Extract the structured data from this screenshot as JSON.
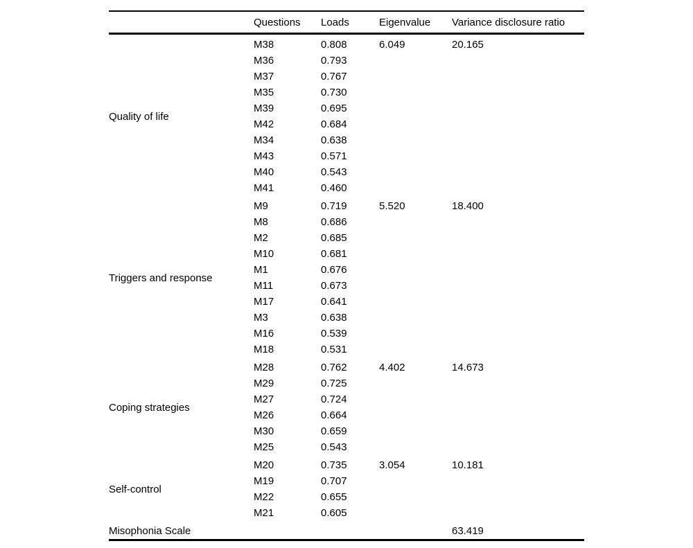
{
  "table": {
    "headers": {
      "factor": "",
      "questions": "Questions",
      "loads": "Loads",
      "eigenvalue": "Eigenvalue",
      "variance": "Variance disclosure ratio"
    },
    "groups": [
      {
        "factor": "Quality of life",
        "eigenvalue": "6.049",
        "variance": "20.165",
        "items": [
          {
            "q": "M38",
            "load": "0.808"
          },
          {
            "q": "M36",
            "load": "0.793"
          },
          {
            "q": "M37",
            "load": "0.767"
          },
          {
            "q": "M35",
            "load": "0.730"
          },
          {
            "q": "M39",
            "load": "0.695"
          },
          {
            "q": "M42",
            "load": "0.684"
          },
          {
            "q": "M34",
            "load": "0.638"
          },
          {
            "q": "M43",
            "load": "0.571"
          },
          {
            "q": "M40",
            "load": "0.543"
          },
          {
            "q": "M41",
            "load": "0.460"
          }
        ]
      },
      {
        "factor": "Triggers and response",
        "eigenvalue": "5.520",
        "variance": "18.400",
        "items": [
          {
            "q": "M9",
            "load": "0.719"
          },
          {
            "q": "M8",
            "load": "0.686"
          },
          {
            "q": "M2",
            "load": "0.685"
          },
          {
            "q": "M10",
            "load": "0.681"
          },
          {
            "q": "M1",
            "load": "0.676"
          },
          {
            "q": "M11",
            "load": "0.673"
          },
          {
            "q": "M17",
            "load": "0.641"
          },
          {
            "q": "M3",
            "load": "0.638"
          },
          {
            "q": "M16",
            "load": "0.539"
          },
          {
            "q": "M18",
            "load": "0.531"
          }
        ]
      },
      {
        "factor": "Coping strategies",
        "eigenvalue": "4.402",
        "variance": "14.673",
        "items": [
          {
            "q": "M28",
            "load": "0.762"
          },
          {
            "q": "M29",
            "load": "0.725"
          },
          {
            "q": "M27",
            "load": "0.724"
          },
          {
            "q": "M26",
            "load": "0.664"
          },
          {
            "q": "M30",
            "load": "0.659"
          },
          {
            "q": "M25",
            "load": "0.543"
          }
        ]
      },
      {
        "factor": "Self-control",
        "eigenvalue": "3.054",
        "variance": "10.181",
        "items": [
          {
            "q": "M20",
            "load": "0.735"
          },
          {
            "q": "M19",
            "load": "0.707"
          },
          {
            "q": "M22",
            "load": "0.655"
          },
          {
            "q": "M21",
            "load": "0.605"
          }
        ]
      }
    ],
    "footer": {
      "factor": "Misophonia Scale",
      "variance": "63.419"
    }
  }
}
